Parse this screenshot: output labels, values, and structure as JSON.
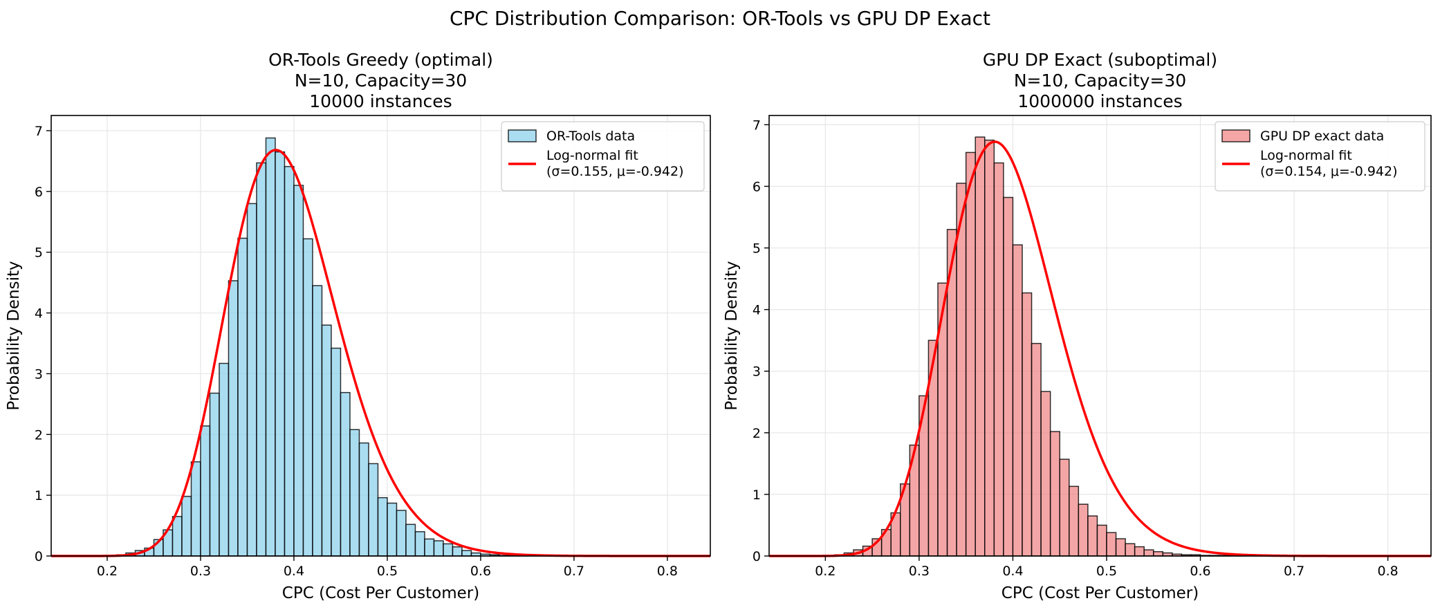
{
  "figure": {
    "suptitle": "CPC Distribution Comparison: OR-Tools vs GPU DP Exact"
  },
  "chart_data": [
    {
      "type": "bar",
      "title_lines": [
        "OR-Tools Greedy (optimal)",
        "N=10, Capacity=30",
        "10000 instances"
      ],
      "xlabel": "CPC (Cost Per Customer)",
      "ylabel": "Probability Density",
      "xlim": [
        0.14,
        0.846
      ],
      "ylim": [
        0,
        7.25
      ],
      "xticks": [
        "0.2",
        "0.3",
        "0.4",
        "0.5",
        "0.6",
        "0.7",
        "0.8"
      ],
      "yticks": [
        "0",
        "1",
        "2",
        "3",
        "4",
        "5",
        "6",
        "7"
      ],
      "grid": true,
      "legend_position": "upper right",
      "bar_color": "#87ceeb",
      "bin_width": 0.01,
      "bins_start": [
        0.2,
        0.21,
        0.22,
        0.23,
        0.24,
        0.25,
        0.26,
        0.27,
        0.28,
        0.29,
        0.3,
        0.31,
        0.32,
        0.33,
        0.34,
        0.35,
        0.36,
        0.37,
        0.38,
        0.39,
        0.4,
        0.41,
        0.42,
        0.43,
        0.44,
        0.45,
        0.46,
        0.47,
        0.48,
        0.49,
        0.5,
        0.51,
        0.52,
        0.53,
        0.54,
        0.55,
        0.56,
        0.57,
        0.58,
        0.59,
        0.6,
        0.61,
        0.62,
        0.63,
        0.64,
        0.65,
        0.66
      ],
      "density": [
        0.01,
        0.02,
        0.05,
        0.09,
        0.13,
        0.27,
        0.43,
        0.65,
        0.98,
        1.55,
        2.14,
        2.68,
        3.17,
        4.53,
        5.23,
        5.8,
        6.47,
        6.88,
        6.65,
        6.41,
        6.1,
        5.22,
        4.45,
        3.8,
        3.42,
        2.69,
        2.08,
        1.86,
        1.52,
        0.96,
        0.87,
        0.75,
        0.52,
        0.4,
        0.28,
        0.25,
        0.2,
        0.15,
        0.09,
        0.05,
        0.03,
        0.02,
        0.01,
        0.01,
        0.01,
        0.01,
        0.02
      ],
      "fit": {
        "sigma": 0.155,
        "mu": -0.942,
        "color": "#ff0000"
      },
      "legend": [
        "OR-Tools data",
        "Log-normal fit",
        "(σ=0.155, μ=-0.942)"
      ]
    },
    {
      "type": "bar",
      "title_lines": [
        "GPU DP Exact (suboptimal)",
        "N=10, Capacity=30",
        "1000000 instances"
      ],
      "xlabel": "CPC (Cost Per Customer)",
      "ylabel": "Probability Density",
      "xlim": [
        0.14,
        0.846
      ],
      "ylim": [
        0,
        7.15
      ],
      "xticks": [
        "0.2",
        "0.3",
        "0.4",
        "0.5",
        "0.6",
        "0.7",
        "0.8"
      ],
      "yticks": [
        "0",
        "1",
        "2",
        "3",
        "4",
        "5",
        "6",
        "7"
      ],
      "grid": true,
      "legend_position": "upper right",
      "bar_color": "#f08080",
      "bin_width": 0.01,
      "bins_start": [
        0.2,
        0.21,
        0.22,
        0.23,
        0.24,
        0.25,
        0.26,
        0.27,
        0.28,
        0.29,
        0.3,
        0.31,
        0.32,
        0.33,
        0.34,
        0.35,
        0.36,
        0.37,
        0.38,
        0.39,
        0.4,
        0.41,
        0.42,
        0.43,
        0.44,
        0.45,
        0.46,
        0.47,
        0.48,
        0.49,
        0.5,
        0.51,
        0.52,
        0.53,
        0.54,
        0.55,
        0.56,
        0.57,
        0.58,
        0.59,
        0.6,
        0.61,
        0.62,
        0.63,
        0.64,
        0.65,
        0.66,
        0.67,
        0.68,
        0.69,
        0.7
      ],
      "density": [
        0.01,
        0.02,
        0.05,
        0.1,
        0.16,
        0.28,
        0.43,
        0.7,
        1.17,
        1.8,
        2.6,
        3.5,
        4.43,
        5.3,
        6.05,
        6.55,
        6.8,
        6.75,
        6.38,
        5.82,
        5.05,
        4.27,
        3.45,
        2.67,
        2.02,
        1.57,
        1.13,
        0.84,
        0.65,
        0.5,
        0.38,
        0.28,
        0.2,
        0.15,
        0.1,
        0.07,
        0.05,
        0.03,
        0.02,
        0.02,
        0.01,
        0.01,
        0.01,
        0.005,
        0.005,
        0.005,
        0.003,
        0.002,
        0.002,
        0.001,
        0.001
      ],
      "fit": {
        "sigma": 0.154,
        "mu": -0.942,
        "color": "#ff0000"
      },
      "legend": [
        "GPU DP exact data",
        "Log-normal fit",
        "(σ=0.154, μ=-0.942)"
      ]
    }
  ]
}
